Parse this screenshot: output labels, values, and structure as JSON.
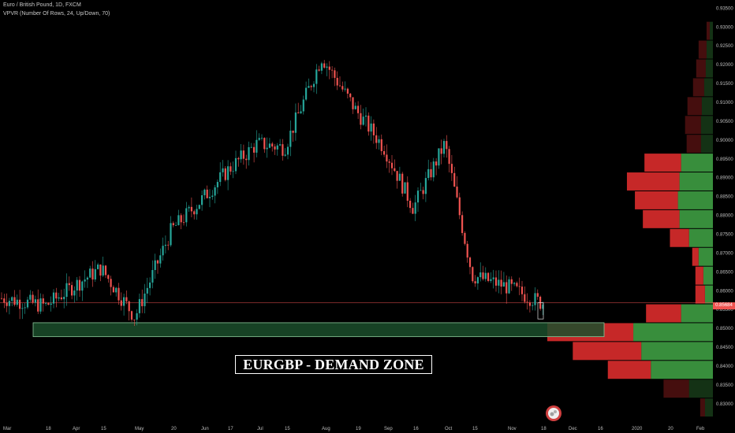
{
  "header": {
    "symbol": "Euro / British Pound, 1D, FXCM",
    "indicator": "VPVR (Number Of Rows, 24, Up/Down, 70)"
  },
  "annotation": {
    "title": "EURGBP - DEMAND ZONE"
  },
  "current_price_label": "0.85684",
  "colors": {
    "up": "#26a69a",
    "down": "#ef5350",
    "background": "#000000",
    "demand_zone_fill": "#1b4d2b",
    "demand_zone_border": "#8bc79a",
    "vp_up": "#388e3c",
    "vp_down": "#c62828"
  },
  "chart_data": {
    "type": "candlestick",
    "x_axis_labels": [
      "Mar",
      "18",
      "Apr",
      "15",
      "May",
      "20",
      "Jun",
      "17",
      "Jul",
      "15",
      "Aug",
      "19",
      "Sep",
      "16",
      "Oct",
      "15",
      "Nov",
      "18",
      "Dec",
      "16",
      "2020",
      "20",
      "Feb"
    ],
    "y_axis_labels": [
      "0.93500",
      "0.93000",
      "0.92500",
      "0.92000",
      "0.91500",
      "0.91000",
      "0.90500",
      "0.90000",
      "0.89500",
      "0.89000",
      "0.88500",
      "0.88000",
      "0.87500",
      "0.87000",
      "0.86500",
      "0.86000",
      "0.85500",
      "0.85000",
      "0.84500",
      "0.84000",
      "0.83500",
      "0.83000"
    ],
    "ylim": [
      0.8285,
      0.9355
    ],
    "price_path": [
      [
        "Mar",
        0.858
      ],
      [
        "18",
        0.856
      ],
      [
        "Apr",
        0.861
      ],
      [
        "15",
        0.866
      ],
      [
        "May",
        0.853
      ],
      [
        "20",
        0.876
      ],
      [
        "Jun",
        0.884
      ],
      [
        "17",
        0.892
      ],
      [
        "Jul",
        0.899
      ],
      [
        "15",
        0.898
      ],
      [
        "Aug",
        0.922
      ],
      [
        "19",
        0.908
      ],
      [
        "Sep",
        0.898
      ],
      [
        "16",
        0.882
      ],
      [
        "Oct",
        0.899
      ],
      [
        "15",
        0.864
      ],
      [
        "Nov",
        0.861
      ],
      [
        "18",
        0.8568
      ]
    ],
    "current_price": 0.85684,
    "demand_zone": [
      0.8478,
      0.8515
    ],
    "volume_profile": [
      {
        "price": 0.929,
        "up": 4,
        "down": 4
      },
      {
        "price": 0.924,
        "up": 8,
        "down": 10
      },
      {
        "price": 0.919,
        "up": 9,
        "down": 12
      },
      {
        "price": 0.914,
        "up": 11,
        "down": 14
      },
      {
        "price": 0.909,
        "up": 14,
        "down": 18
      },
      {
        "price": 0.904,
        "up": 15,
        "down": 20
      },
      {
        "price": 0.899,
        "up": 15,
        "down": 18
      },
      {
        "price": 0.894,
        "up": 40,
        "down": 46
      },
      {
        "price": 0.889,
        "up": 42,
        "down": 66
      },
      {
        "price": 0.884,
        "up": 44,
        "down": 54
      },
      {
        "price": 0.879,
        "up": 42,
        "down": 46
      },
      {
        "price": 0.874,
        "up": 30,
        "down": 24
      },
      {
        "price": 0.869,
        "up": 18,
        "down": 8
      },
      {
        "price": 0.864,
        "up": 12,
        "down": 10
      },
      {
        "price": 0.859,
        "up": 10,
        "down": 12
      },
      {
        "price": 0.854,
        "up": 40,
        "down": 44
      },
      {
        "price": 0.849,
        "up": 100,
        "down": 108
      },
      {
        "price": 0.844,
        "up": 90,
        "down": 86
      },
      {
        "price": 0.839,
        "up": 78,
        "down": 54
      },
      {
        "price": 0.834,
        "up": 30,
        "down": 32
      },
      {
        "price": 0.829,
        "up": 10,
        "down": 6
      }
    ]
  }
}
